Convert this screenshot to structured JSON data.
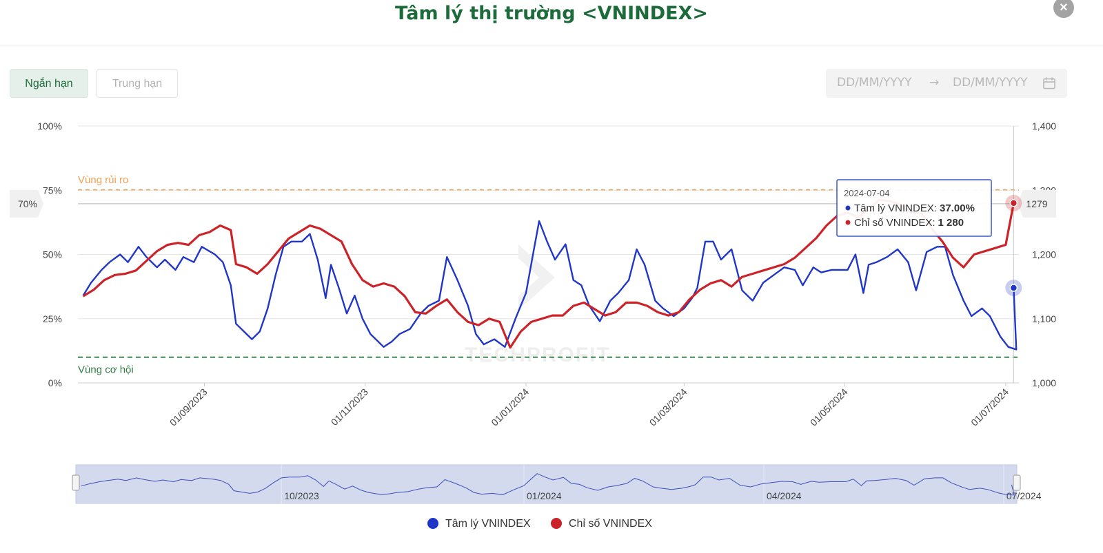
{
  "title": "Tâm lý thị trường <VNINDEX>",
  "tabs": {
    "short": "Ngắn hạn",
    "mid": "Trung hạn"
  },
  "date_range": {
    "from_placeholder": "DD/MM/YYYY",
    "arrow": "→",
    "to_placeholder": "DD/MM/YYYY"
  },
  "close_label": "×",
  "icons": {
    "close": "close-icon",
    "calendar": "calendar-icon"
  },
  "colors": {
    "sentiment": "#1f36c7",
    "index": "#cc2329",
    "risk": "#f0a055",
    "opportunity": "#2e7d45",
    "brand": "#1d6b3a"
  },
  "chart_data": {
    "type": "line",
    "left_axis": {
      "ylim": [
        0,
        100
      ],
      "ticks": [
        "0%",
        "25%",
        "50%",
        "75%",
        "100%"
      ]
    },
    "right_axis": {
      "ylim": [
        1000,
        1400
      ],
      "ticks": [
        "1,000",
        "1,100",
        "1,200",
        "1,300",
        "1,400"
      ]
    },
    "x_ticks": [
      "01/09/2023",
      "01/11/2023",
      "01/01/2024",
      "01/03/2024",
      "01/05/2024",
      "01/07/2024"
    ],
    "x_range": [
      "2023-07-15",
      "2024-07-06"
    ],
    "zones": [
      {
        "label": "Vùng rủi ro",
        "value": 75,
        "color": "#f0a055"
      },
      {
        "label": "Vùng cơ hội",
        "value": 10,
        "color": "#2e7d45"
      }
    ],
    "crosshair": {
      "date": "2024-07-04",
      "left_label": "70%",
      "right_label": "1279"
    },
    "tooltip": {
      "date": "2024-07-04",
      "rows": [
        {
          "name": "Tâm lý VNINDEX",
          "sep": ":",
          "value": "37.00%",
          "color": "#1f36c7"
        },
        {
          "name": "Chỉ số VNINDEX",
          "sep": ":",
          "value": "1 280",
          "color": "#cc2329"
        }
      ]
    },
    "series": [
      {
        "name": "Tâm lý VNINDEX",
        "axis": "left",
        "color": "#1f36c7",
        "points": [
          [
            "2023-07-17",
            34
          ],
          [
            "2023-07-20",
            39
          ],
          [
            "2023-07-24",
            44
          ],
          [
            "2023-07-27",
            47
          ],
          [
            "2023-07-31",
            50
          ],
          [
            "2023-08-03",
            47
          ],
          [
            "2023-08-07",
            53
          ],
          [
            "2023-08-10",
            49
          ],
          [
            "2023-08-14",
            45
          ],
          [
            "2023-08-17",
            48
          ],
          [
            "2023-08-21",
            44
          ],
          [
            "2023-08-24",
            49
          ],
          [
            "2023-08-28",
            47
          ],
          [
            "2023-08-31",
            53
          ],
          [
            "2023-09-05",
            50
          ],
          [
            "2023-09-08",
            47
          ],
          [
            "2023-09-11",
            38
          ],
          [
            "2023-09-13",
            23
          ],
          [
            "2023-09-16",
            20
          ],
          [
            "2023-09-19",
            17
          ],
          [
            "2023-09-22",
            20
          ],
          [
            "2023-09-25",
            29
          ],
          [
            "2023-09-28",
            42
          ],
          [
            "2023-10-01",
            53
          ],
          [
            "2023-10-04",
            55
          ],
          [
            "2023-10-08",
            55
          ],
          [
            "2023-10-11",
            58
          ],
          [
            "2023-10-14",
            48
          ],
          [
            "2023-10-17",
            33
          ],
          [
            "2023-10-19",
            46
          ],
          [
            "2023-10-22",
            37
          ],
          [
            "2023-10-25",
            27
          ],
          [
            "2023-10-28",
            34
          ],
          [
            "2023-10-31",
            25
          ],
          [
            "2023-11-03",
            19
          ],
          [
            "2023-11-06",
            16
          ],
          [
            "2023-11-08",
            14
          ],
          [
            "2023-11-11",
            16
          ],
          [
            "2023-11-14",
            19
          ],
          [
            "2023-11-18",
            21
          ],
          [
            "2023-11-22",
            27
          ],
          [
            "2023-11-25",
            30
          ],
          [
            "2023-11-29",
            32
          ],
          [
            "2023-12-02",
            49
          ],
          [
            "2023-12-06",
            40
          ],
          [
            "2023-12-10",
            30
          ],
          [
            "2023-12-13",
            19
          ],
          [
            "2023-12-16",
            15
          ],
          [
            "2023-12-20",
            17
          ],
          [
            "2023-12-24",
            14
          ],
          [
            "2023-12-28",
            25
          ],
          [
            "2024-01-01",
            35
          ],
          [
            "2024-01-04",
            52
          ],
          [
            "2024-01-06",
            63
          ],
          [
            "2024-01-09",
            55
          ],
          [
            "2024-01-12",
            48
          ],
          [
            "2024-01-16",
            54
          ],
          [
            "2024-01-19",
            40
          ],
          [
            "2024-01-22",
            38
          ],
          [
            "2024-01-25",
            30
          ],
          [
            "2024-01-29",
            24
          ],
          [
            "2024-02-02",
            32
          ],
          [
            "2024-02-05",
            35
          ],
          [
            "2024-02-09",
            40
          ],
          [
            "2024-02-12",
            52
          ],
          [
            "2024-02-15",
            46
          ],
          [
            "2024-02-19",
            32
          ],
          [
            "2024-02-22",
            29
          ],
          [
            "2024-02-26",
            26
          ],
          [
            "2024-03-01",
            29
          ],
          [
            "2024-03-04",
            33
          ],
          [
            "2024-03-06",
            37
          ],
          [
            "2024-03-09",
            55
          ],
          [
            "2024-03-12",
            55
          ],
          [
            "2024-03-15",
            48
          ],
          [
            "2024-03-19",
            52
          ],
          [
            "2024-03-23",
            36
          ],
          [
            "2024-03-27",
            32
          ],
          [
            "2024-03-31",
            39
          ],
          [
            "2024-04-04",
            42
          ],
          [
            "2024-04-08",
            45
          ],
          [
            "2024-04-12",
            44
          ],
          [
            "2024-04-15",
            38
          ],
          [
            "2024-04-19",
            45
          ],
          [
            "2024-04-22",
            43
          ],
          [
            "2024-04-26",
            44
          ],
          [
            "2024-04-29",
            44
          ],
          [
            "2024-05-02",
            44
          ],
          [
            "2024-05-05",
            50
          ],
          [
            "2024-05-08",
            35
          ],
          [
            "2024-05-10",
            46
          ],
          [
            "2024-05-13",
            47
          ],
          [
            "2024-05-17",
            49
          ],
          [
            "2024-05-21",
            52
          ],
          [
            "2024-05-25",
            47
          ],
          [
            "2024-05-28",
            36
          ],
          [
            "2024-06-01",
            51
          ],
          [
            "2024-06-05",
            53
          ],
          [
            "2024-06-08",
            53
          ],
          [
            "2024-06-11",
            42
          ],
          [
            "2024-06-15",
            32
          ],
          [
            "2024-06-18",
            26
          ],
          [
            "2024-06-22",
            29
          ],
          [
            "2024-06-25",
            26
          ],
          [
            "2024-06-29",
            18
          ],
          [
            "2024-07-02",
            14
          ],
          [
            "2024-07-05",
            13
          ],
          [
            "2024-07-04",
            37
          ]
        ]
      },
      {
        "name": "Chỉ số VNINDEX",
        "axis": "right",
        "color": "#cc2329",
        "points": [
          [
            "2023-07-17",
            1135
          ],
          [
            "2023-07-21",
            1145
          ],
          [
            "2023-07-25",
            1160
          ],
          [
            "2023-07-29",
            1168
          ],
          [
            "2023-08-02",
            1170
          ],
          [
            "2023-08-06",
            1175
          ],
          [
            "2023-08-10",
            1190
          ],
          [
            "2023-08-14",
            1205
          ],
          [
            "2023-08-18",
            1215
          ],
          [
            "2023-08-22",
            1218
          ],
          [
            "2023-08-26",
            1215
          ],
          [
            "2023-08-30",
            1230
          ],
          [
            "2023-09-03",
            1235
          ],
          [
            "2023-09-07",
            1245
          ],
          [
            "2023-09-11",
            1238
          ],
          [
            "2023-09-13",
            1185
          ],
          [
            "2023-09-17",
            1180
          ],
          [
            "2023-09-21",
            1170
          ],
          [
            "2023-09-25",
            1185
          ],
          [
            "2023-09-29",
            1205
          ],
          [
            "2023-10-03",
            1225
          ],
          [
            "2023-10-07",
            1235
          ],
          [
            "2023-10-11",
            1245
          ],
          [
            "2023-10-15",
            1240
          ],
          [
            "2023-10-19",
            1230
          ],
          [
            "2023-10-23",
            1220
          ],
          [
            "2023-10-27",
            1185
          ],
          [
            "2023-10-31",
            1160
          ],
          [
            "2023-11-04",
            1150
          ],
          [
            "2023-11-08",
            1155
          ],
          [
            "2023-11-12",
            1150
          ],
          [
            "2023-11-16",
            1135
          ],
          [
            "2023-11-20",
            1110
          ],
          [
            "2023-11-24",
            1108
          ],
          [
            "2023-11-28",
            1120
          ],
          [
            "2023-12-02",
            1130
          ],
          [
            "2023-12-06",
            1110
          ],
          [
            "2023-12-10",
            1095
          ],
          [
            "2023-12-14",
            1090
          ],
          [
            "2023-12-18",
            1100
          ],
          [
            "2023-12-22",
            1095
          ],
          [
            "2023-12-26",
            1055
          ],
          [
            "2023-12-30",
            1080
          ],
          [
            "2024-01-03",
            1095
          ],
          [
            "2024-01-07",
            1100
          ],
          [
            "2024-01-11",
            1105
          ],
          [
            "2024-01-15",
            1105
          ],
          [
            "2024-01-19",
            1120
          ],
          [
            "2024-01-23",
            1125
          ],
          [
            "2024-01-27",
            1115
          ],
          [
            "2024-01-31",
            1105
          ],
          [
            "2024-02-04",
            1110
          ],
          [
            "2024-02-08",
            1125
          ],
          [
            "2024-02-12",
            1125
          ],
          [
            "2024-02-16",
            1120
          ],
          [
            "2024-02-20",
            1110
          ],
          [
            "2024-02-24",
            1105
          ],
          [
            "2024-02-28",
            1110
          ],
          [
            "2024-03-03",
            1130
          ],
          [
            "2024-03-07",
            1145
          ],
          [
            "2024-03-11",
            1155
          ],
          [
            "2024-03-15",
            1160
          ],
          [
            "2024-03-19",
            1150
          ],
          [
            "2024-03-23",
            1165
          ],
          [
            "2024-03-27",
            1170
          ],
          [
            "2024-03-31",
            1175
          ],
          [
            "2024-04-04",
            1180
          ],
          [
            "2024-04-08",
            1185
          ],
          [
            "2024-04-12",
            1195
          ],
          [
            "2024-04-16",
            1210
          ],
          [
            "2024-04-20",
            1225
          ],
          [
            "2024-04-24",
            1245
          ],
          [
            "2024-04-28",
            1260
          ],
          [
            "2024-05-02",
            1265
          ],
          [
            "2024-05-06",
            1258
          ],
          [
            "2024-05-10",
            1270
          ],
          [
            "2024-05-14",
            1285
          ],
          [
            "2024-05-18",
            1283
          ],
          [
            "2024-05-22",
            1278
          ],
          [
            "2024-05-26",
            1265
          ],
          [
            "2024-05-30",
            1265
          ],
          [
            "2024-06-03",
            1240
          ],
          [
            "2024-06-07",
            1220
          ],
          [
            "2024-06-11",
            1195
          ],
          [
            "2024-06-15",
            1180
          ],
          [
            "2024-06-19",
            1200
          ],
          [
            "2024-06-23",
            1205
          ],
          [
            "2024-06-27",
            1210
          ],
          [
            "2024-07-01",
            1215
          ],
          [
            "2024-07-04",
            1280
          ]
        ]
      }
    ],
    "navigator": {
      "labels": [
        "10/2023",
        "01/2024",
        "04/2024",
        "07/2024"
      ]
    },
    "watermark": "TECHPROFIT"
  }
}
